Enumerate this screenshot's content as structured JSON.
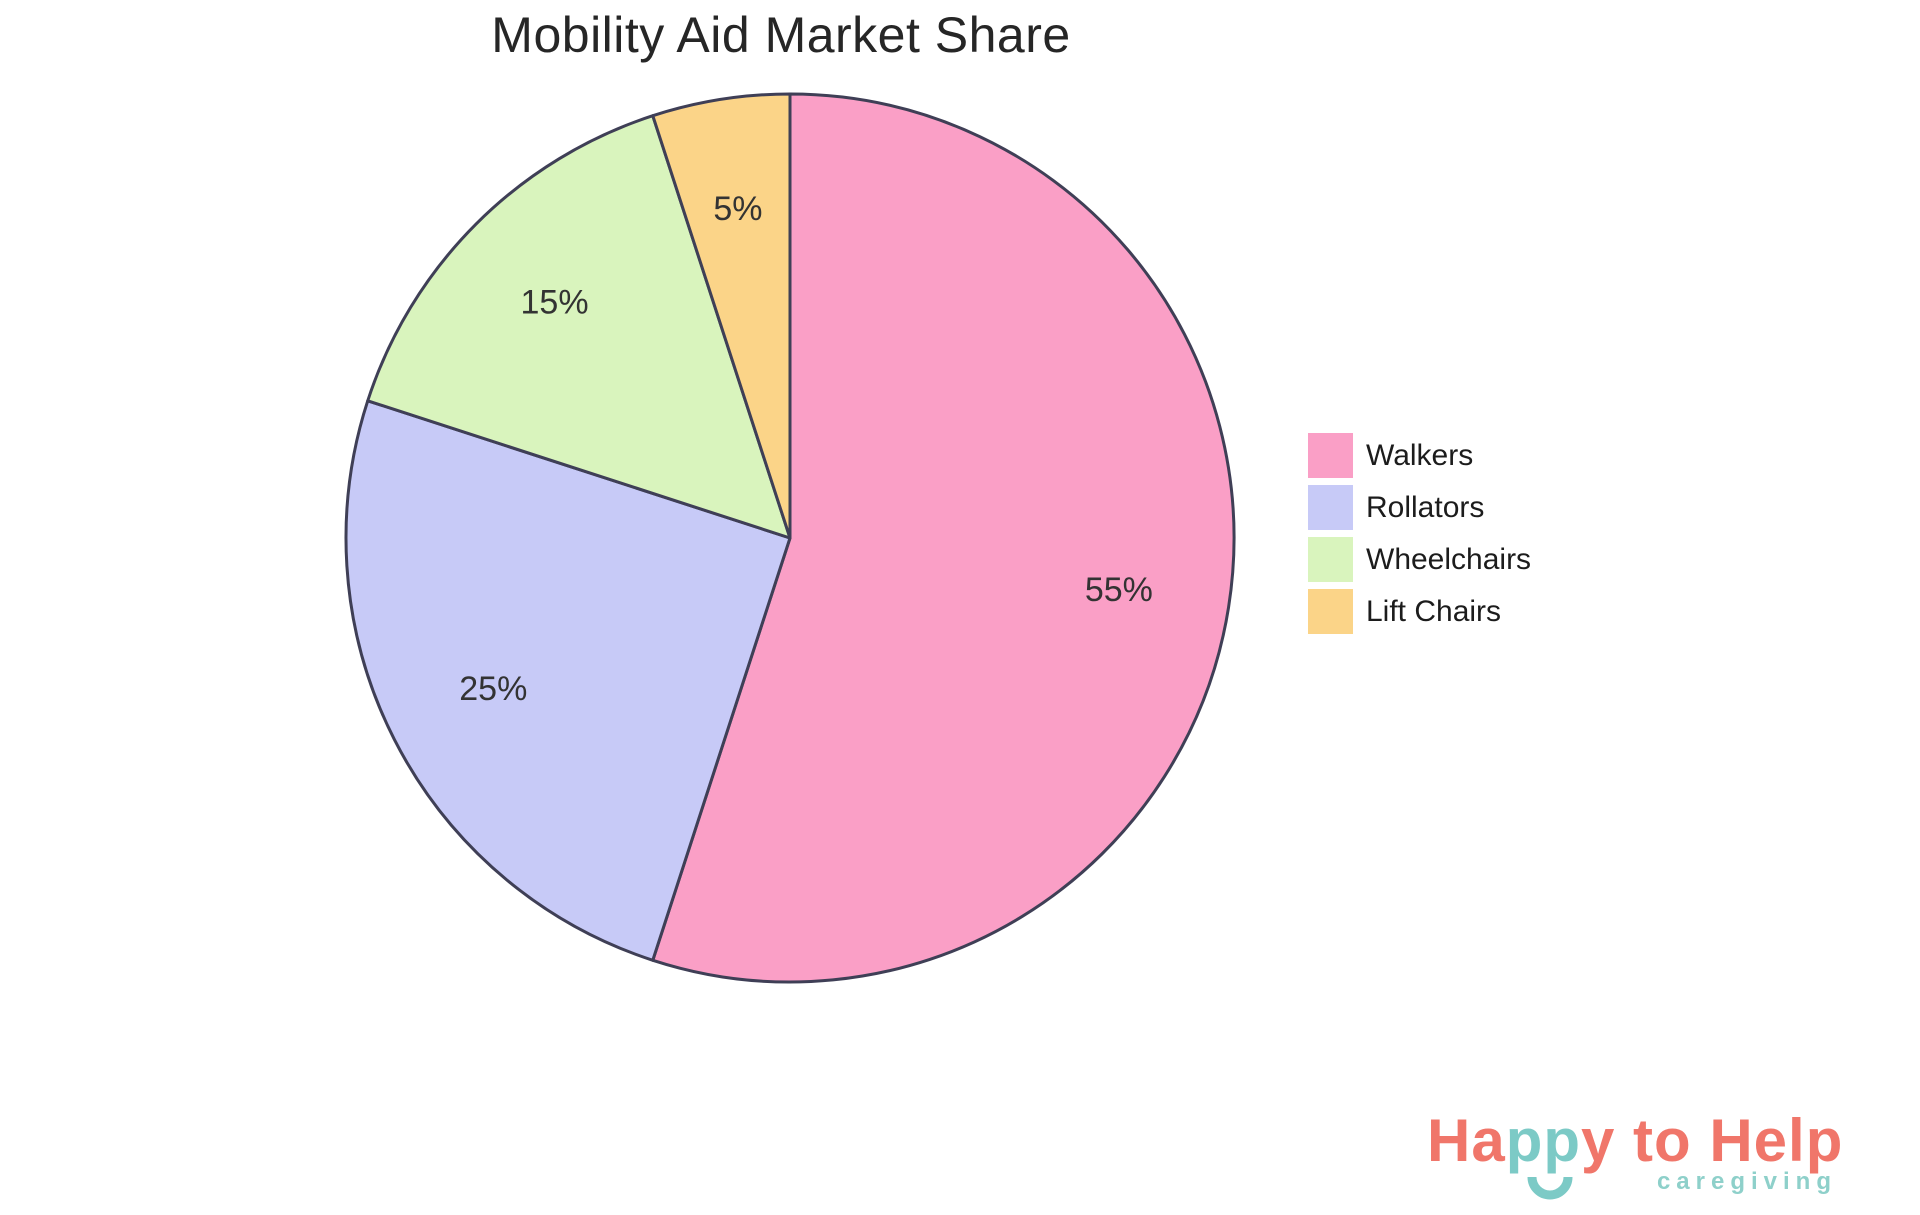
{
  "chart_data": {
    "type": "pie",
    "title": "Mobility Aid Market Share",
    "labels": [
      "Walkers",
      "Rollators",
      "Wheelchairs",
      "Lift Chairs"
    ],
    "values": [
      55,
      25,
      15,
      5
    ],
    "pct_labels": [
      "55%",
      "25%",
      "15%",
      "5%"
    ],
    "colors": [
      "#FA9FC6",
      "#C7CAF7",
      "#D9F4BD",
      "#FBD488"
    ],
    "edge_color": "#3F3F56",
    "pct_label_color": "#333333",
    "start_angle": "12-oclock",
    "direction": "clockwise",
    "pct_distance": 0.75,
    "legend_position": "right"
  },
  "branding": {
    "line1": [
      {
        "text": "Ha",
        "color": "#F0766A"
      },
      {
        "text": "pp",
        "color": "#7CCAC6"
      },
      {
        "text": "y to Help",
        "color": "#F0766A"
      }
    ],
    "line2": "caregiving",
    "line2_color": "#8ED0CA",
    "smile_color": "#7CCAC6"
  }
}
